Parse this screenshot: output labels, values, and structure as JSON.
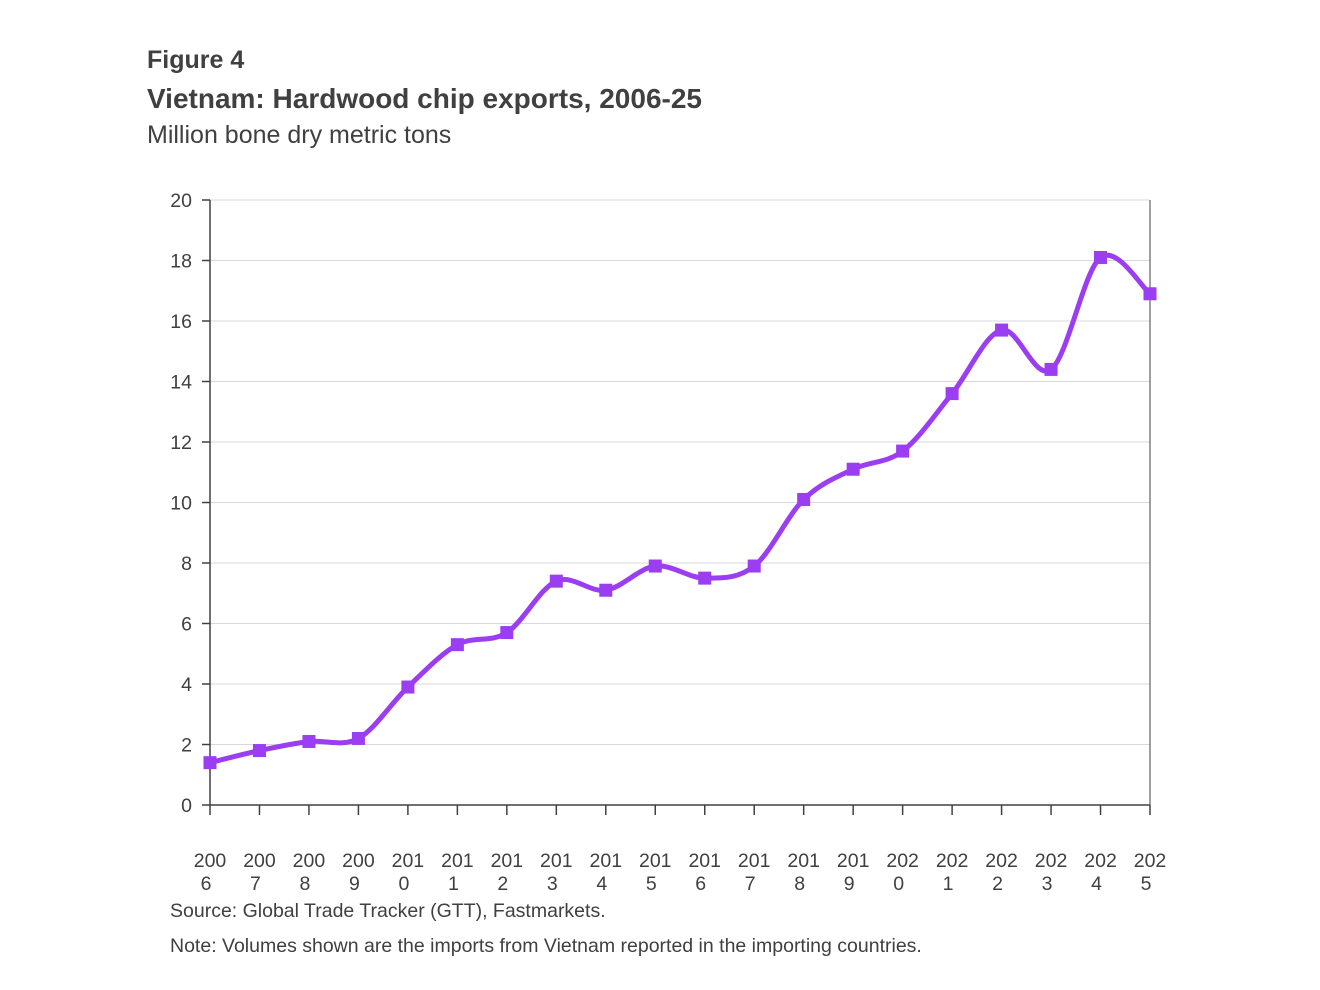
{
  "header": {
    "figure_label": "Figure 4",
    "title": "Vietnam: Hardwood chip exports, 2006-25",
    "subtitle": "Million bone dry metric tons"
  },
  "footer": {
    "source": "Source: Global Trade Tracker (GTT), Fastmarkets.",
    "note": "Note: Volumes shown are the imports from Vietnam reported in the importing countries."
  },
  "chart_data": {
    "type": "line",
    "title": "Vietnam: Hardwood chip exports, 2006-25",
    "subtitle": "Million bone dry metric tons",
    "xlabel": "",
    "ylabel": "",
    "categories": [
      "2006",
      "2007",
      "2008",
      "2009",
      "2010",
      "2011",
      "2012",
      "2013",
      "2014",
      "2015",
      "2016",
      "2017",
      "2018",
      "2019",
      "2020",
      "2021",
      "2022",
      "2023",
      "2024",
      "2025"
    ],
    "series": [
      {
        "values": [
          1.4,
          1.8,
          2.1,
          2.2,
          3.9,
          5.3,
          5.7,
          7.4,
          7.1,
          7.9,
          7.5,
          7.9,
          10.1,
          11.1,
          11.7,
          13.6,
          15.7,
          14.4,
          18.1,
          16.9
        ]
      }
    ],
    "ylim": [
      0,
      20
    ],
    "yticks": [
      0,
      2,
      4,
      6,
      8,
      10,
      12,
      14,
      16,
      18,
      20
    ],
    "grid": "horizontal",
    "smooth": true,
    "marker": "square",
    "line_color": "#9b3df0",
    "gridline_color": "#d9d9d9",
    "axis_color": "#404040"
  }
}
